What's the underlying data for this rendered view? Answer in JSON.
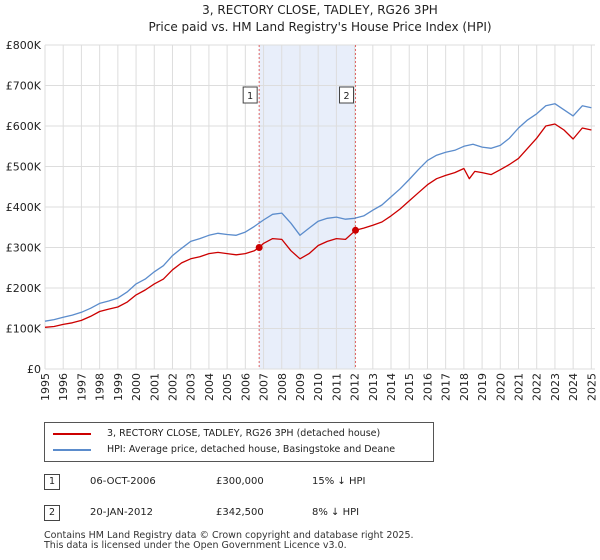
{
  "chart_data": {
    "type": "line",
    "title": "3, RECTORY CLOSE, TADLEY, RG26 3PH",
    "subtitle": "Price paid vs. HM Land Registry's House Price Index (HPI)",
    "xlim": [
      1995,
      2025.2
    ],
    "ylim": [
      0,
      800000
    ],
    "x_ticks": [
      "1995",
      "1996",
      "1997",
      "1998",
      "1999",
      "2000",
      "2001",
      "2002",
      "2003",
      "2004",
      "2005",
      "2006",
      "2007",
      "2008",
      "2009",
      "2010",
      "2011",
      "2012",
      "2013",
      "2014",
      "2015",
      "2016",
      "2017",
      "2018",
      "2019",
      "2020",
      "2021",
      "2022",
      "2023",
      "2024",
      "2025"
    ],
    "y_ticks": [
      {
        "value": 0,
        "label": "£0"
      },
      {
        "value": 100000,
        "label": "£100K"
      },
      {
        "value": 200000,
        "label": "£200K"
      },
      {
        "value": 300000,
        "label": "£300K"
      },
      {
        "value": 400000,
        "label": "£400K"
      },
      {
        "value": 500000,
        "label": "£500K"
      },
      {
        "value": 600000,
        "label": "£600K"
      },
      {
        "value": 700000,
        "label": "£700K"
      },
      {
        "value": 800000,
        "label": "£800K"
      }
    ],
    "shaded_range": [
      2006.76,
      2012.05
    ],
    "markers": [
      {
        "label": "1",
        "x": 2006.76,
        "y": 300000
      },
      {
        "label": "2",
        "x": 2012.05,
        "y": 342500
      }
    ],
    "series": [
      {
        "name": "3, RECTORY CLOSE, TADLEY, RG26 3PH (detached house)",
        "color": "#cc0000",
        "x": [
          1995,
          1995.5,
          1996,
          1996.5,
          1997,
          1997.5,
          1998,
          1998.5,
          1999,
          1999.5,
          2000,
          2000.5,
          2001,
          2001.5,
          2002,
          2002.5,
          2003,
          2003.5,
          2004,
          2004.5,
          2005,
          2005.5,
          2006,
          2006.5,
          2006.76,
          2007,
          2007.5,
          2008,
          2008.5,
          2009,
          2009.5,
          2010,
          2010.5,
          2011,
          2011.5,
          2012.05,
          2012.5,
          2013,
          2013.5,
          2014,
          2014.5,
          2015,
          2015.5,
          2016,
          2016.5,
          2017,
          2017.5,
          2018,
          2018.3,
          2018.6,
          2019,
          2019.5,
          2020,
          2020.5,
          2021,
          2021.5,
          2022,
          2022.5,
          2023,
          2023.5,
          2024,
          2024.5,
          2025
        ],
        "values": [
          103000,
          105000,
          110000,
          114000,
          120000,
          130000,
          142000,
          148000,
          153000,
          165000,
          183000,
          195000,
          210000,
          222000,
          245000,
          262000,
          272000,
          277000,
          285000,
          288000,
          285000,
          282000,
          285000,
          292000,
          300000,
          310000,
          322000,
          320000,
          292000,
          272000,
          285000,
          305000,
          315000,
          322000,
          320000,
          342500,
          348000,
          355000,
          363000,
          378000,
          395000,
          415000,
          435000,
          455000,
          470000,
          478000,
          485000,
          495000,
          470000,
          488000,
          485000,
          480000,
          492000,
          505000,
          520000,
          545000,
          570000,
          600000,
          605000,
          590000,
          568000,
          595000,
          590000
        ]
      },
      {
        "name": "HPI: Average price, detached house, Basingstoke and Deane",
        "color": "#5b8ccc",
        "x": [
          1995,
          1995.5,
          1996,
          1996.5,
          1997,
          1997.5,
          1998,
          1998.5,
          1999,
          1999.5,
          2000,
          2000.5,
          2001,
          2001.5,
          2002,
          2002.5,
          2003,
          2003.5,
          2004,
          2004.5,
          2005,
          2005.5,
          2006,
          2006.5,
          2007,
          2007.5,
          2008,
          2008.5,
          2009,
          2009.5,
          2010,
          2010.5,
          2011,
          2011.5,
          2012,
          2012.5,
          2013,
          2013.5,
          2014,
          2014.5,
          2015,
          2015.5,
          2016,
          2016.5,
          2017,
          2017.5,
          2018,
          2018.5,
          2019,
          2019.5,
          2020,
          2020.5,
          2021,
          2021.5,
          2022,
          2022.5,
          2023,
          2023.5,
          2024,
          2024.5,
          2025
        ],
        "values": [
          118000,
          122000,
          128000,
          133000,
          140000,
          150000,
          162000,
          168000,
          175000,
          190000,
          210000,
          222000,
          240000,
          255000,
          280000,
          298000,
          315000,
          322000,
          330000,
          335000,
          332000,
          330000,
          338000,
          352000,
          368000,
          382000,
          385000,
          360000,
          330000,
          348000,
          365000,
          372000,
          375000,
          370000,
          372000,
          378000,
          392000,
          405000,
          425000,
          445000,
          468000,
          492000,
          515000,
          528000,
          535000,
          540000,
          550000,
          555000,
          548000,
          545000,
          552000,
          570000,
          595000,
          615000,
          630000,
          650000,
          655000,
          640000,
          625000,
          650000,
          645000
        ]
      }
    ]
  },
  "legend": {
    "items": [
      {
        "label": "3, RECTORY CLOSE, TADLEY, RG26 3PH (detached house)",
        "color": "#cc0000"
      },
      {
        "label": "HPI: Average price, detached house, Basingstoke and Deane",
        "color": "#5b8ccc"
      }
    ]
  },
  "transactions": [
    {
      "num": "1",
      "date": "06-OCT-2006",
      "price": "£300,000",
      "hpi": "15% ↓ HPI"
    },
    {
      "num": "2",
      "date": "20-JAN-2012",
      "price": "£342,500",
      "hpi": "8% ↓ HPI"
    }
  ],
  "footer": {
    "line1": "Contains HM Land Registry data © Crown copyright and database right 2025.",
    "line2": "This data is licensed under the Open Government Licence v3.0."
  }
}
